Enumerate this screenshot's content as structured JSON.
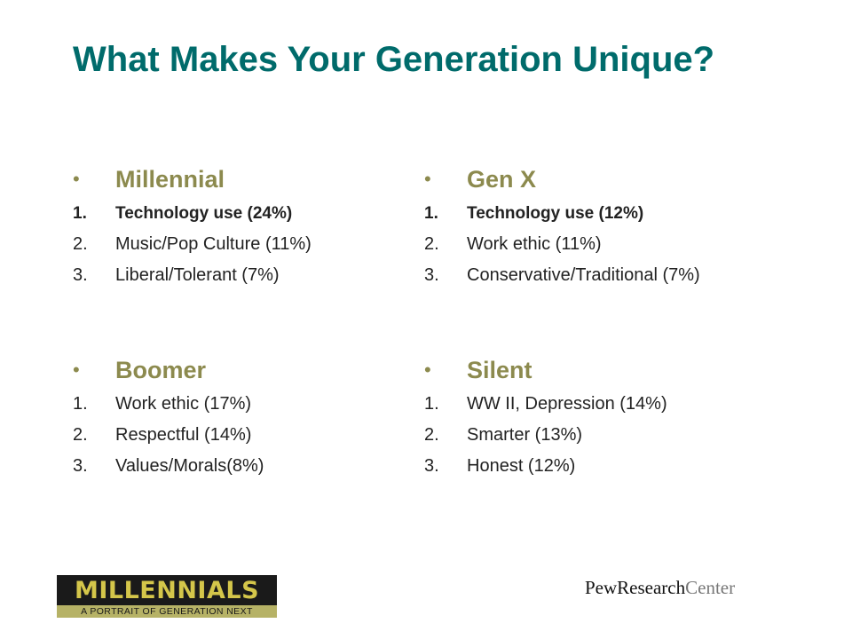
{
  "title": "What Makes Your Generation Unique?",
  "colors": {
    "title": "#006b6b",
    "group_heading": "#8c8a4e",
    "body_text": "#222222",
    "logo_bg": "#1a1a1a",
    "logo_word": "#d4c64a",
    "logo_band": "#b6b266"
  },
  "bullet_char": "•",
  "groups": [
    {
      "name": "Millennial",
      "items": [
        {
          "num": "1.",
          "text": "Technology use (24%)",
          "bold": true
        },
        {
          "num": "2.",
          "text": "Music/Pop Culture (11%)",
          "bold": false
        },
        {
          "num": "3.",
          "text": "Liberal/Tolerant (7%)",
          "bold": false
        }
      ]
    },
    {
      "name": "Gen X",
      "items": [
        {
          "num": "1.",
          "text": "Technology use (12%)",
          "bold": true
        },
        {
          "num": "2.",
          "text": "Work ethic (11%)",
          "bold": false
        },
        {
          "num": "3.",
          "text": "Conservative/Traditional (7%)",
          "bold": false
        }
      ]
    },
    {
      "name": "Boomer",
      "items": [
        {
          "num": "1.",
          "text": "Work ethic (17%)",
          "bold": false
        },
        {
          "num": "2.",
          "text": "Respectful (14%)",
          "bold": false
        },
        {
          "num": "3.",
          "text": "Values/Morals(8%)",
          "bold": false
        }
      ]
    },
    {
      "name": "Silent",
      "items": [
        {
          "num": "1.",
          "text": "WW II, Depression (14%)",
          "bold": false
        },
        {
          "num": "2.",
          "text": "Smarter (13%)",
          "bold": false
        },
        {
          "num": "3.",
          "text": "Honest (12%)",
          "bold": false
        }
      ]
    }
  ],
  "footer": {
    "millennials_logo": {
      "word": "MILLENNIALS",
      "tagline": "A PORTRAIT OF GENERATION NEXT"
    },
    "pew_logo": {
      "part1": "PewResearch",
      "part2": "Center"
    }
  }
}
